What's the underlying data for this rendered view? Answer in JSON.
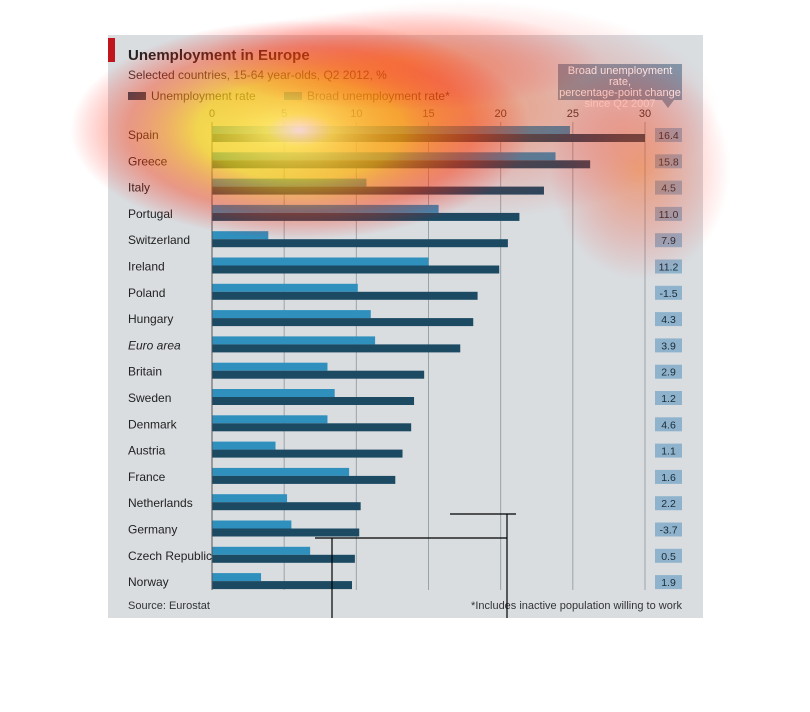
{
  "header": {
    "title": "Unemployment in Europe",
    "subtitle": "Selected countries, 15-64 year-olds, Q2 2012, %"
  },
  "legend": {
    "unemployment": "Unemployment rate",
    "broad": "Broad unemployment rate*"
  },
  "callout": {
    "line1": "Broad unemployment rate,",
    "line2": "percentage-point change",
    "line3": "since Q2 2007"
  },
  "footer": {
    "source": "Source: Eurostat",
    "footnote": "*Includes inactive population willing to work"
  },
  "colors": {
    "unemployment": "#1c4a63",
    "broad": "#2f8fbd",
    "box": "#8fb3cc",
    "grid": "#9aa3a8",
    "panel": "#d9dde0"
  },
  "chart_data": {
    "type": "bar",
    "orientation": "horizontal",
    "xlim": [
      0,
      30
    ],
    "xticks": [
      "0",
      "5",
      "10",
      "15",
      "20",
      "25",
      "30"
    ],
    "categories": [
      "Spain",
      "Greece",
      "Italy",
      "Portugal",
      "Switzerland",
      "Ireland",
      "Poland",
      "Hungary",
      "Euro area",
      "Britain",
      "Sweden",
      "Denmark",
      "Austria",
      "France",
      "Netherlands",
      "Germany",
      "Czech Republic",
      "Norway"
    ],
    "italic_categories": [
      "Euro area"
    ],
    "series": [
      {
        "name": "Broad unemployment rate*",
        "values": [
          24.8,
          23.8,
          10.7,
          15.7,
          3.9,
          15.0,
          10.1,
          11.0,
          11.3,
          8.0,
          8.5,
          8.0,
          4.4,
          9.5,
          5.2,
          5.5,
          6.8,
          3.4
        ]
      },
      {
        "name": "Unemployment rate",
        "values": [
          30.0,
          26.2,
          23.0,
          21.3,
          20.5,
          19.9,
          18.4,
          18.1,
          17.2,
          14.7,
          14.0,
          13.8,
          13.2,
          12.7,
          10.3,
          10.2,
          9.9,
          9.7
        ]
      }
    ],
    "change_labels": [
      "16.4",
      "15.8",
      "4.5",
      "11.0",
      "7.9",
      "11.2",
      "-1.5",
      "4.3",
      "3.9",
      "2.9",
      "1.2",
      "4.6",
      "1.1",
      "1.6",
      "2.2",
      "-3.7",
      "0.5",
      "1.9"
    ]
  }
}
